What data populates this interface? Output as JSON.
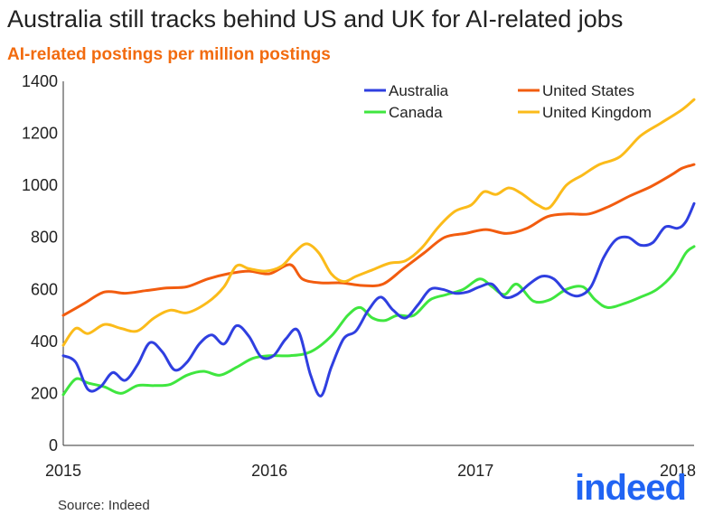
{
  "header": {
    "title": "Australia still tracks behind US and UK for AI-related jobs",
    "subtitle": "AI-related postings per million postings"
  },
  "footer": {
    "source": "Source: Indeed",
    "logo_text": "indeed"
  },
  "chart_data": {
    "type": "line",
    "title": "Australia still tracks behind US and UK for AI-related jobs",
    "subtitle": "AI-related postings per million postings",
    "xlabel": "",
    "ylabel": "",
    "xlim": [
      2015.0,
      2018.06
    ],
    "ylim": [
      0,
      1400
    ],
    "y_ticks": [
      0,
      200,
      400,
      600,
      800,
      1000,
      1200,
      1400
    ],
    "x_ticks": [
      2015,
      2016,
      2017,
      2018
    ],
    "grid": false,
    "legend": "top-center",
    "series": [
      {
        "name": "Australia",
        "color": "#2f3fe0",
        "points": [
          [
            2015.0,
            345
          ],
          [
            2015.06,
            320
          ],
          [
            2015.12,
            215
          ],
          [
            2015.18,
            225
          ],
          [
            2015.24,
            280
          ],
          [
            2015.3,
            250
          ],
          [
            2015.36,
            310
          ],
          [
            2015.42,
            395
          ],
          [
            2015.48,
            360
          ],
          [
            2015.54,
            290
          ],
          [
            2015.6,
            320
          ],
          [
            2015.66,
            390
          ],
          [
            2015.72,
            425
          ],
          [
            2015.78,
            390
          ],
          [
            2015.84,
            460
          ],
          [
            2015.9,
            420
          ],
          [
            2015.96,
            340
          ],
          [
            2016.02,
            345
          ],
          [
            2016.08,
            410
          ],
          [
            2016.14,
            440
          ],
          [
            2016.2,
            270
          ],
          [
            2016.25,
            190
          ],
          [
            2016.3,
            300
          ],
          [
            2016.36,
            410
          ],
          [
            2016.42,
            440
          ],
          [
            2016.48,
            520
          ],
          [
            2016.54,
            570
          ],
          [
            2016.6,
            520
          ],
          [
            2016.66,
            490
          ],
          [
            2016.72,
            540
          ],
          [
            2016.78,
            600
          ],
          [
            2016.84,
            600
          ],
          [
            2016.9,
            585
          ],
          [
            2016.96,
            590
          ],
          [
            2017.02,
            610
          ],
          [
            2017.08,
            620
          ],
          [
            2017.14,
            570
          ],
          [
            2017.2,
            580
          ],
          [
            2017.26,
            620
          ],
          [
            2017.32,
            650
          ],
          [
            2017.38,
            640
          ],
          [
            2017.44,
            590
          ],
          [
            2017.5,
            575
          ],
          [
            2017.56,
            610
          ],
          [
            2017.62,
            720
          ],
          [
            2017.68,
            790
          ],
          [
            2017.74,
            800
          ],
          [
            2017.8,
            770
          ],
          [
            2017.86,
            780
          ],
          [
            2017.92,
            840
          ],
          [
            2017.98,
            835
          ],
          [
            2018.02,
            860
          ],
          [
            2018.06,
            930
          ]
        ]
      },
      {
        "name": "United States",
        "color": "#f25c0f",
        "points": [
          [
            2015.0,
            500
          ],
          [
            2015.1,
            545
          ],
          [
            2015.2,
            590
          ],
          [
            2015.3,
            585
          ],
          [
            2015.4,
            595
          ],
          [
            2015.5,
            605
          ],
          [
            2015.6,
            610
          ],
          [
            2015.7,
            640
          ],
          [
            2015.8,
            660
          ],
          [
            2015.9,
            670
          ],
          [
            2016.0,
            660
          ],
          [
            2016.1,
            695
          ],
          [
            2016.16,
            640
          ],
          [
            2016.25,
            625
          ],
          [
            2016.35,
            625
          ],
          [
            2016.45,
            615
          ],
          [
            2016.55,
            620
          ],
          [
            2016.65,
            680
          ],
          [
            2016.75,
            740
          ],
          [
            2016.85,
            800
          ],
          [
            2016.95,
            815
          ],
          [
            2017.05,
            830
          ],
          [
            2017.15,
            815
          ],
          [
            2017.25,
            835
          ],
          [
            2017.35,
            880
          ],
          [
            2017.45,
            890
          ],
          [
            2017.55,
            890
          ],
          [
            2017.65,
            920
          ],
          [
            2017.75,
            960
          ],
          [
            2017.85,
            995
          ],
          [
            2017.95,
            1040
          ],
          [
            2018.0,
            1065
          ],
          [
            2018.06,
            1080
          ]
        ]
      },
      {
        "name": "Canada",
        "color": "#3fe63f",
        "points": [
          [
            2015.0,
            195
          ],
          [
            2015.06,
            255
          ],
          [
            2015.12,
            240
          ],
          [
            2015.2,
            225
          ],
          [
            2015.28,
            200
          ],
          [
            2015.36,
            230
          ],
          [
            2015.44,
            230
          ],
          [
            2015.52,
            235
          ],
          [
            2015.6,
            270
          ],
          [
            2015.68,
            285
          ],
          [
            2015.76,
            270
          ],
          [
            2015.84,
            300
          ],
          [
            2015.92,
            335
          ],
          [
            2016.0,
            345
          ],
          [
            2016.1,
            345
          ],
          [
            2016.2,
            360
          ],
          [
            2016.3,
            420
          ],
          [
            2016.38,
            500
          ],
          [
            2016.44,
            530
          ],
          [
            2016.5,
            490
          ],
          [
            2016.56,
            480
          ],
          [
            2016.62,
            500
          ],
          [
            2016.7,
            500
          ],
          [
            2016.78,
            560
          ],
          [
            2016.86,
            580
          ],
          [
            2016.94,
            600
          ],
          [
            2017.02,
            640
          ],
          [
            2017.08,
            610
          ],
          [
            2017.14,
            580
          ],
          [
            2017.2,
            620
          ],
          [
            2017.28,
            555
          ],
          [
            2017.36,
            560
          ],
          [
            2017.44,
            600
          ],
          [
            2017.52,
            610
          ],
          [
            2017.58,
            560
          ],
          [
            2017.64,
            530
          ],
          [
            2017.72,
            545
          ],
          [
            2017.8,
            570
          ],
          [
            2017.88,
            600
          ],
          [
            2017.96,
            660
          ],
          [
            2018.02,
            740
          ],
          [
            2018.06,
            765
          ]
        ]
      },
      {
        "name": "United Kingdom",
        "color": "#fbbb1a",
        "points": [
          [
            2015.0,
            385
          ],
          [
            2015.06,
            450
          ],
          [
            2015.12,
            430
          ],
          [
            2015.2,
            465
          ],
          [
            2015.28,
            450
          ],
          [
            2015.36,
            440
          ],
          [
            2015.44,
            490
          ],
          [
            2015.52,
            520
          ],
          [
            2015.6,
            510
          ],
          [
            2015.7,
            550
          ],
          [
            2015.78,
            610
          ],
          [
            2015.84,
            690
          ],
          [
            2015.9,
            680
          ],
          [
            2015.98,
            670
          ],
          [
            2016.06,
            690
          ],
          [
            2016.12,
            740
          ],
          [
            2016.18,
            775
          ],
          [
            2016.24,
            740
          ],
          [
            2016.3,
            660
          ],
          [
            2016.36,
            630
          ],
          [
            2016.42,
            650
          ],
          [
            2016.5,
            675
          ],
          [
            2016.58,
            700
          ],
          [
            2016.66,
            710
          ],
          [
            2016.74,
            760
          ],
          [
            2016.82,
            840
          ],
          [
            2016.9,
            900
          ],
          [
            2016.98,
            925
          ],
          [
            2017.04,
            975
          ],
          [
            2017.1,
            965
          ],
          [
            2017.16,
            990
          ],
          [
            2017.22,
            970
          ],
          [
            2017.3,
            925
          ],
          [
            2017.36,
            915
          ],
          [
            2017.44,
            1000
          ],
          [
            2017.52,
            1040
          ],
          [
            2017.6,
            1080
          ],
          [
            2017.7,
            1110
          ],
          [
            2017.8,
            1190
          ],
          [
            2017.9,
            1240
          ],
          [
            2018.0,
            1290
          ],
          [
            2018.06,
            1330
          ]
        ]
      }
    ]
  }
}
